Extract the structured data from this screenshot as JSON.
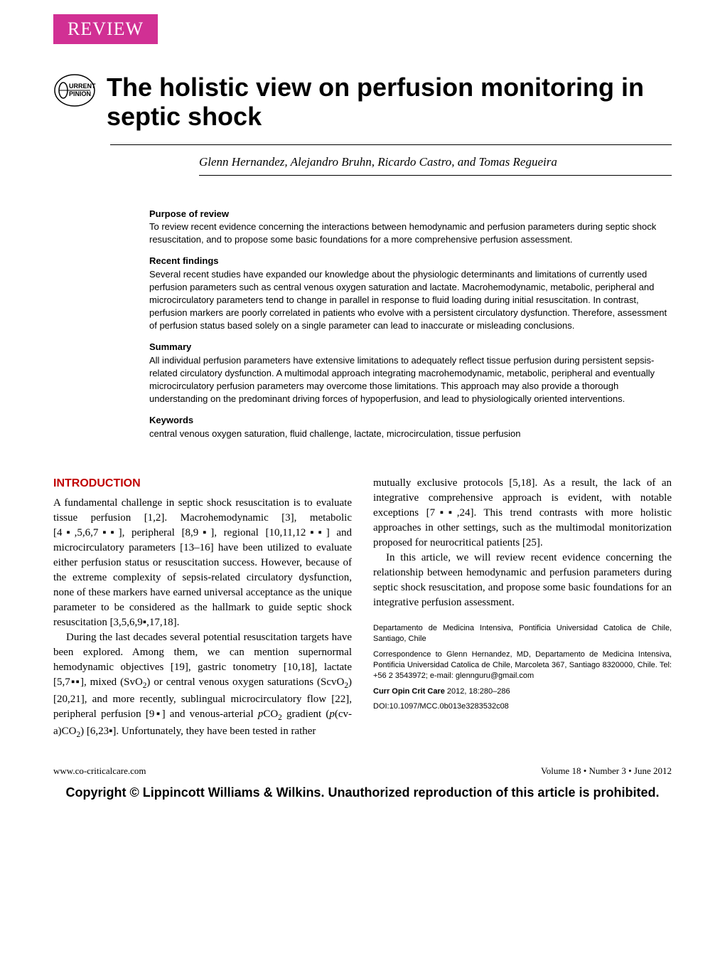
{
  "badge": "REVIEW",
  "opinion_label_top": "URRENT",
  "opinion_label_bottom": "PINION",
  "title": "The holistic view on perfusion monitoring in septic shock",
  "authors": "Glenn Hernandez, Alejandro Bruhn, Ricardo Castro, and Tomas Regueira",
  "abstract": {
    "purpose_heading": "Purpose of review",
    "purpose_text": "To review recent evidence concerning the interactions between hemodynamic and perfusion parameters during septic shock resuscitation, and to propose some basic foundations for a more comprehensive perfusion assessment.",
    "findings_heading": "Recent findings",
    "findings_text": "Several recent studies have expanded our knowledge about the physiologic determinants and limitations of currently used perfusion parameters such as central venous oxygen saturation and lactate. Macrohemodynamic, metabolic, peripheral and microcirculatory parameters tend to change in parallel in response to fluid loading during initial resuscitation. In contrast, perfusion markers are poorly correlated in patients who evolve with a persistent circulatory dysfunction. Therefore, assessment of perfusion status based solely on a single parameter can lead to inaccurate or misleading conclusions.",
    "summary_heading": "Summary",
    "summary_text": "All individual perfusion parameters have extensive limitations to adequately reflect tissue perfusion during persistent sepsis-related circulatory dysfunction. A multimodal approach integrating macrohemodynamic, metabolic, peripheral and eventually microcirculatory perfusion parameters may overcome those limitations. This approach may also provide a thorough understanding on the predominant driving forces of hypoperfusion, and lead to physiologically oriented interventions.",
    "keywords_heading": "Keywords",
    "keywords_text": "central venous oxygen saturation, fluid challenge, lactate, microcirculation, tissue perfusion"
  },
  "intro_heading": "INTRODUCTION",
  "col1_para1": "A fundamental challenge in septic shock resuscitation is to evaluate tissue perfusion [1,2]. Macrohemodynamic [3], metabolic [4▪,5,6,7▪▪], peripheral [8,9▪], regional [10,11,12▪▪] and microcirculatory parameters [13–16] have been utilized to evaluate either perfusion status or resuscitation success. However, because of the extreme complexity of sepsis-related circulatory dysfunction, none of these markers have earned universal acceptance as the unique parameter to be considered as the hallmark to guide septic shock resuscitation [3,5,6,9▪,17,18].",
  "col1_para2_html": "During the last decades several potential resuscitation targets have been explored. Among them, we can mention supernormal hemodynamic objectives [19], gastric tonometry [10,18], lactate [5,7▪▪], mixed (SvO<sub>2</sub>) or central venous oxygen saturations (ScvO<sub>2</sub>) [20,21], and more recently, sublingual microcirculatory flow [22], peripheral perfusion [9▪] and venous-arterial <i>p</i>CO<sub>2</sub> gradient (<i>p</i>(cv-a)CO<sub>2</sub>) [6,23▪]. Unfortunately, they have been tested in rather",
  "col2_para1": "mutually exclusive protocols [5,18]. As a result, the lack of an integrative comprehensive approach is evident, with notable exceptions [7▪▪,24]. This trend contrasts with more holistic approaches in other settings, such as the multimodal monitorization proposed for neurocritical patients [25].",
  "col2_para2": "In this article, we will review recent evidence concerning the relationship between hemodynamic and perfusion parameters during septic shock resuscitation, and propose some basic foundations for an integrative perfusion assessment.",
  "affiliation": {
    "dept": "Departamento de Medicina Intensiva, Pontificia Universidad Catolica de Chile, Santiago, Chile",
    "correspondence": "Correspondence to Glenn Hernandez, MD, Departamento de Medicina Intensiva, Pontificia Universidad Catolica de Chile, Marcoleta 367, Santiago 8320000, Chile. Tel: +56 2 3543972; e-mail: glennguru@gmail.com",
    "citation_html": "<b>Curr Opin Crit Care</b> 2012, 18:280–286",
    "doi": "DOI:10.1097/MCC.0b013e3283532c08"
  },
  "footer_left": "www.co-criticalcare.com",
  "footer_right": "Volume 18 • Number 3 • June 2012",
  "copyright": "Copyright © Lippincott Williams & Wilkins. Unauthorized reproduction of this article is prohibited.",
  "colors": {
    "badge_bg": "#d13094",
    "heading": "#c00000",
    "text": "#000000",
    "bg": "#ffffff"
  }
}
